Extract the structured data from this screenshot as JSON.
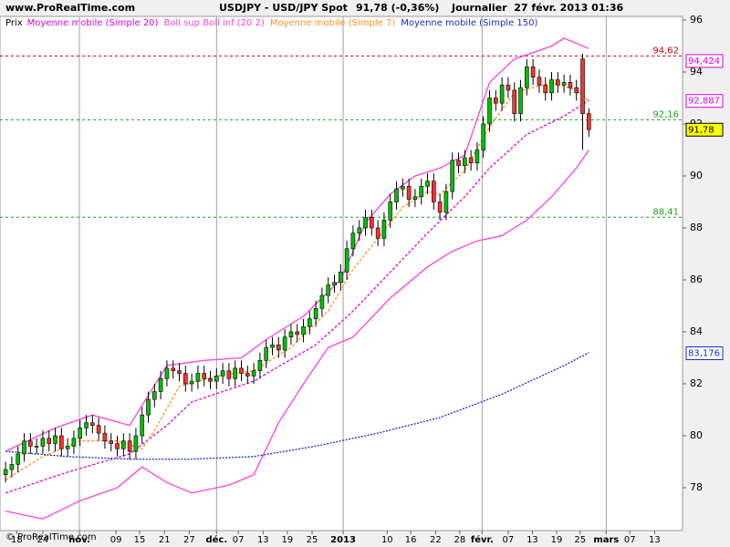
{
  "chart_data": {
    "type": "candlestick",
    "site": "www.ProRealTime.com",
    "title": "USDJPY - USD/JPY Spot",
    "last": "91,78 (-0,36%)",
    "period": "Journalier  27 févr. 2013 01:36",
    "legend_prefix": "Prix",
    "copyright": "© ProRealTime.com",
    "ylim": [
      76.35,
      96.14
    ],
    "yticks": [
      78,
      80,
      82,
      84,
      86,
      88,
      90,
      92,
      94,
      96
    ],
    "xlim": [
      -0.9,
      109.1
    ],
    "xticks": [
      {
        "value": 1.8,
        "label": "18"
      },
      {
        "value": 6.0,
        "label": "24"
      },
      {
        "value": 11.9,
        "label": "nov.",
        "grid": true
      },
      {
        "value": 17.8,
        "label": "09"
      },
      {
        "value": 21.6,
        "label": "15"
      },
      {
        "value": 25.6,
        "label": "21"
      },
      {
        "value": 29.6,
        "label": "27"
      },
      {
        "value": 34.0,
        "label": "déc.",
        "grid": true
      },
      {
        "value": 37.5,
        "label": "07"
      },
      {
        "value": 41.5,
        "label": "13"
      },
      {
        "value": 45.4,
        "label": "19"
      },
      {
        "value": 49.4,
        "label": "25"
      },
      {
        "value": 54.4,
        "label": "2013",
        "grid": true
      },
      {
        "value": 61.5,
        "label": "10"
      },
      {
        "value": 65.3,
        "label": "16"
      },
      {
        "value": 69.3,
        "label": "22"
      },
      {
        "value": 73.2,
        "label": "28"
      },
      {
        "value": 76.8,
        "label": "févr.",
        "grid": true
      },
      {
        "value": 81.0,
        "label": "07"
      },
      {
        "value": 84.9,
        "label": "13"
      },
      {
        "value": 88.8,
        "label": "19"
      },
      {
        "value": 92.6,
        "label": "25"
      },
      {
        "value": 96.8,
        "label": "mars",
        "grid": true
      },
      {
        "value": 100.6,
        "label": "07"
      },
      {
        "value": 104.6,
        "label": "13"
      }
    ],
    "up_color": "#00c000",
    "down_color": "#ff3030",
    "open": [
      78.5,
      78.7,
      78.9,
      79.3,
      79.8,
      79.6,
      79.6,
      79.9,
      79.7,
      80.0,
      79.5,
      79.6,
      79.9,
      80.3,
      80.5,
      80.4,
      80.1,
      79.8,
      79.7,
      79.5,
      79.8,
      79.4,
      80.0,
      80.8,
      81.4,
      81.7,
      82.2,
      82.6,
      82.5,
      82.4,
      82.0,
      82.1,
      82.4,
      82.2,
      82.1,
      82.3,
      82.5,
      82.2,
      82.6,
      82.4,
      82.3,
      82.5,
      82.9,
      83.4,
      83.5,
      83.3,
      83.8,
      84.0,
      83.9,
      84.2,
      84.5,
      84.9,
      85.4,
      85.8,
      85.9,
      86.3,
      87.2,
      87.8,
      88.0,
      88.4,
      88.0,
      87.6,
      88.3,
      89.0,
      89.5,
      89.6,
      89.1,
      89.2,
      89.6,
      89.8,
      89.0,
      88.6,
      89.4,
      90.6,
      90.4,
      90.7,
      90.5,
      91.0,
      92.0,
      93.0,
      92.8,
      93.5,
      93.3,
      92.4,
      93.4,
      94.2,
      93.8,
      93.5,
      93.2,
      93.7,
      93.5,
      93.6,
      93.4,
      94.5,
      92.4
    ],
    "high": [
      79.0,
      79.2,
      79.6,
      80.1,
      80.1,
      79.9,
      80.2,
      80.2,
      80.3,
      80.3,
      79.9,
      80.2,
      80.6,
      80.8,
      80.8,
      80.7,
      80.4,
      80.1,
      80.0,
      80.1,
      80.1,
      80.3,
      81.1,
      81.7,
      82.0,
      82.5,
      82.9,
      82.9,
      82.8,
      82.7,
      82.4,
      82.7,
      82.7,
      82.5,
      82.6,
      82.8,
      82.8,
      82.9,
      82.9,
      82.7,
      82.8,
      83.2,
      83.7,
      83.8,
      83.8,
      84.1,
      84.3,
      84.3,
      84.5,
      84.8,
      85.2,
      85.7,
      86.1,
      86.2,
      86.6,
      87.5,
      88.1,
      88.3,
      88.7,
      88.7,
      88.3,
      88.6,
      89.3,
      89.8,
      89.9,
      89.9,
      89.5,
      89.9,
      90.1,
      90.1,
      89.3,
      89.7,
      90.9,
      90.9,
      91.0,
      91.0,
      91.3,
      92.3,
      93.3,
      93.3,
      93.8,
      93.8,
      93.6,
      93.7,
      94.5,
      94.5,
      94.1,
      93.8,
      94.0,
      94.0,
      93.9,
      93.9,
      93.7,
      94.7,
      92.6
    ],
    "low": [
      78.2,
      78.4,
      78.6,
      79.0,
      79.3,
      79.3,
      79.3,
      79.4,
      79.4,
      79.2,
      79.2,
      79.3,
      79.6,
      80.0,
      80.1,
      79.8,
      79.5,
      79.4,
      79.2,
      79.2,
      79.1,
      79.1,
      79.7,
      80.5,
      81.1,
      81.4,
      81.9,
      82.2,
      82.1,
      81.7,
      81.7,
      81.8,
      81.9,
      81.8,
      81.8,
      82.0,
      81.9,
      81.9,
      82.1,
      82.0,
      82.0,
      82.2,
      82.6,
      83.1,
      83.0,
      83.0,
      83.5,
      83.6,
      83.6,
      83.9,
      84.2,
      84.6,
      85.1,
      85.5,
      85.6,
      86.0,
      86.9,
      87.5,
      87.7,
      87.7,
      87.3,
      87.3,
      88.0,
      88.7,
      89.2,
      88.8,
      88.8,
      88.9,
      89.3,
      88.7,
      88.3,
      88.3,
      89.1,
      90.1,
      90.1,
      90.2,
      90.2,
      90.7,
      91.7,
      92.5,
      92.5,
      93.0,
      92.1,
      92.1,
      93.1,
      93.5,
      93.2,
      92.9,
      92.9,
      93.2,
      93.2,
      93.1,
      92.9,
      91.0,
      91.5
    ],
    "close": [
      78.7,
      78.9,
      79.3,
      79.8,
      79.6,
      79.6,
      79.9,
      79.7,
      80.0,
      79.5,
      79.6,
      79.9,
      80.3,
      80.5,
      80.4,
      80.1,
      79.8,
      79.7,
      79.5,
      79.8,
      79.4,
      80.0,
      80.8,
      81.4,
      81.7,
      82.2,
      82.6,
      82.5,
      82.4,
      82.0,
      82.1,
      82.4,
      82.2,
      82.1,
      82.3,
      82.5,
      82.2,
      82.6,
      82.4,
      82.3,
      82.5,
      82.9,
      83.4,
      83.5,
      83.3,
      83.8,
      84.0,
      83.9,
      84.2,
      84.5,
      84.9,
      85.4,
      85.8,
      85.9,
      86.3,
      87.2,
      87.8,
      88.0,
      88.4,
      88.0,
      87.6,
      88.3,
      89.0,
      89.5,
      89.6,
      89.1,
      89.2,
      89.6,
      89.8,
      89.0,
      88.6,
      89.4,
      90.6,
      90.4,
      90.7,
      90.5,
      91.0,
      92.0,
      93.0,
      92.8,
      93.5,
      93.3,
      92.4,
      93.4,
      94.2,
      93.8,
      93.5,
      93.2,
      93.7,
      93.5,
      93.6,
      93.4,
      93.2,
      92.4,
      91.78
    ],
    "series": [
      {
        "name": "Moyenne mobile (Simple 20)",
        "color": "#e000e0",
        "dash": "3 2",
        "x": [
          0,
          10,
          20,
          26,
          30,
          40,
          50,
          56,
          62,
          68,
          74,
          78,
          84,
          90,
          94
        ],
        "values": [
          77.8,
          78.6,
          79.3,
          80.4,
          81.3,
          82.1,
          83.5,
          84.8,
          86.3,
          87.8,
          89.2,
          90.3,
          91.6,
          92.3,
          92.9
        ]
      },
      {
        "name": "Boll sup Boll inf (20 2)",
        "color": "#ff40e0",
        "dash": "none",
        "x": [
          0,
          8,
          14,
          20,
          26,
          32,
          38,
          42,
          48,
          54,
          58,
          62,
          66,
          70,
          74,
          78,
          82,
          88,
          90,
          94
        ],
        "values": [
          79.4,
          80.3,
          80.8,
          80.4,
          82.7,
          82.9,
          83.0,
          83.7,
          84.6,
          86.0,
          88.2,
          89.3,
          90.0,
          90.3,
          90.8,
          93.6,
          94.5,
          95.0,
          95.3,
          94.9
        ],
        "lower_x": [
          0,
          6,
          12,
          18,
          22,
          26,
          30,
          36,
          40,
          44,
          48,
          52,
          56,
          62,
          68,
          72,
          76,
          80,
          84,
          88,
          92,
          94
        ],
        "lower_values": [
          77.1,
          76.8,
          77.5,
          78.0,
          78.8,
          78.2,
          77.8,
          78.1,
          78.5,
          80.5,
          82.0,
          83.4,
          83.8,
          85.3,
          86.5,
          87.1,
          87.5,
          87.7,
          88.3,
          89.2,
          90.3,
          91.0
        ]
      },
      {
        "name": "Moyenne mobile (Simple 7)",
        "color": "#ff9020",
        "dash": "3 2",
        "x": [
          0,
          6,
          12,
          18,
          22,
          24,
          28,
          34,
          40,
          46,
          52,
          56,
          60,
          64,
          68,
          70,
          74,
          78,
          82,
          88,
          92,
          94
        ],
        "values": [
          78.3,
          79.2,
          79.8,
          79.8,
          79.5,
          80.2,
          81.9,
          82.3,
          82.5,
          83.4,
          84.8,
          86.4,
          87.6,
          88.8,
          89.4,
          89.3,
          90.2,
          91.9,
          93.2,
          93.6,
          93.3,
          92.9
        ]
      },
      {
        "name": "Moyenne mobile (Simple 150)",
        "color": "#1030c0",
        "dash": "2 1.5",
        "x": [
          0,
          10,
          20,
          30,
          40,
          50,
          60,
          70,
          80,
          90,
          94
        ],
        "values": [
          79.4,
          79.2,
          79.1,
          79.1,
          79.2,
          79.6,
          80.1,
          80.7,
          81.6,
          82.7,
          83.2
        ]
      }
    ],
    "levels": [
      {
        "value": 94.62,
        "label": "94,62",
        "color": "#cc0000"
      },
      {
        "value": 92.16,
        "label": "92,16",
        "color": "#20a020"
      },
      {
        "value": 88.41,
        "label": "88,41",
        "color": "#20a020"
      }
    ],
    "price_labels": [
      {
        "value": 94.424,
        "label": "94,424",
        "color": "#e000e0",
        "bg": "#ffffff"
      },
      {
        "value": 92.887,
        "label": "92,887",
        "color": "#e000e0",
        "bg": "#ffffff"
      },
      {
        "value": 91.78,
        "label": "91,78",
        "color": "#000000",
        "bg": "#ffff00"
      },
      {
        "value": 83.176,
        "label": "83,176",
        "color": "#1030c0",
        "bg": "#ffffff"
      }
    ]
  }
}
